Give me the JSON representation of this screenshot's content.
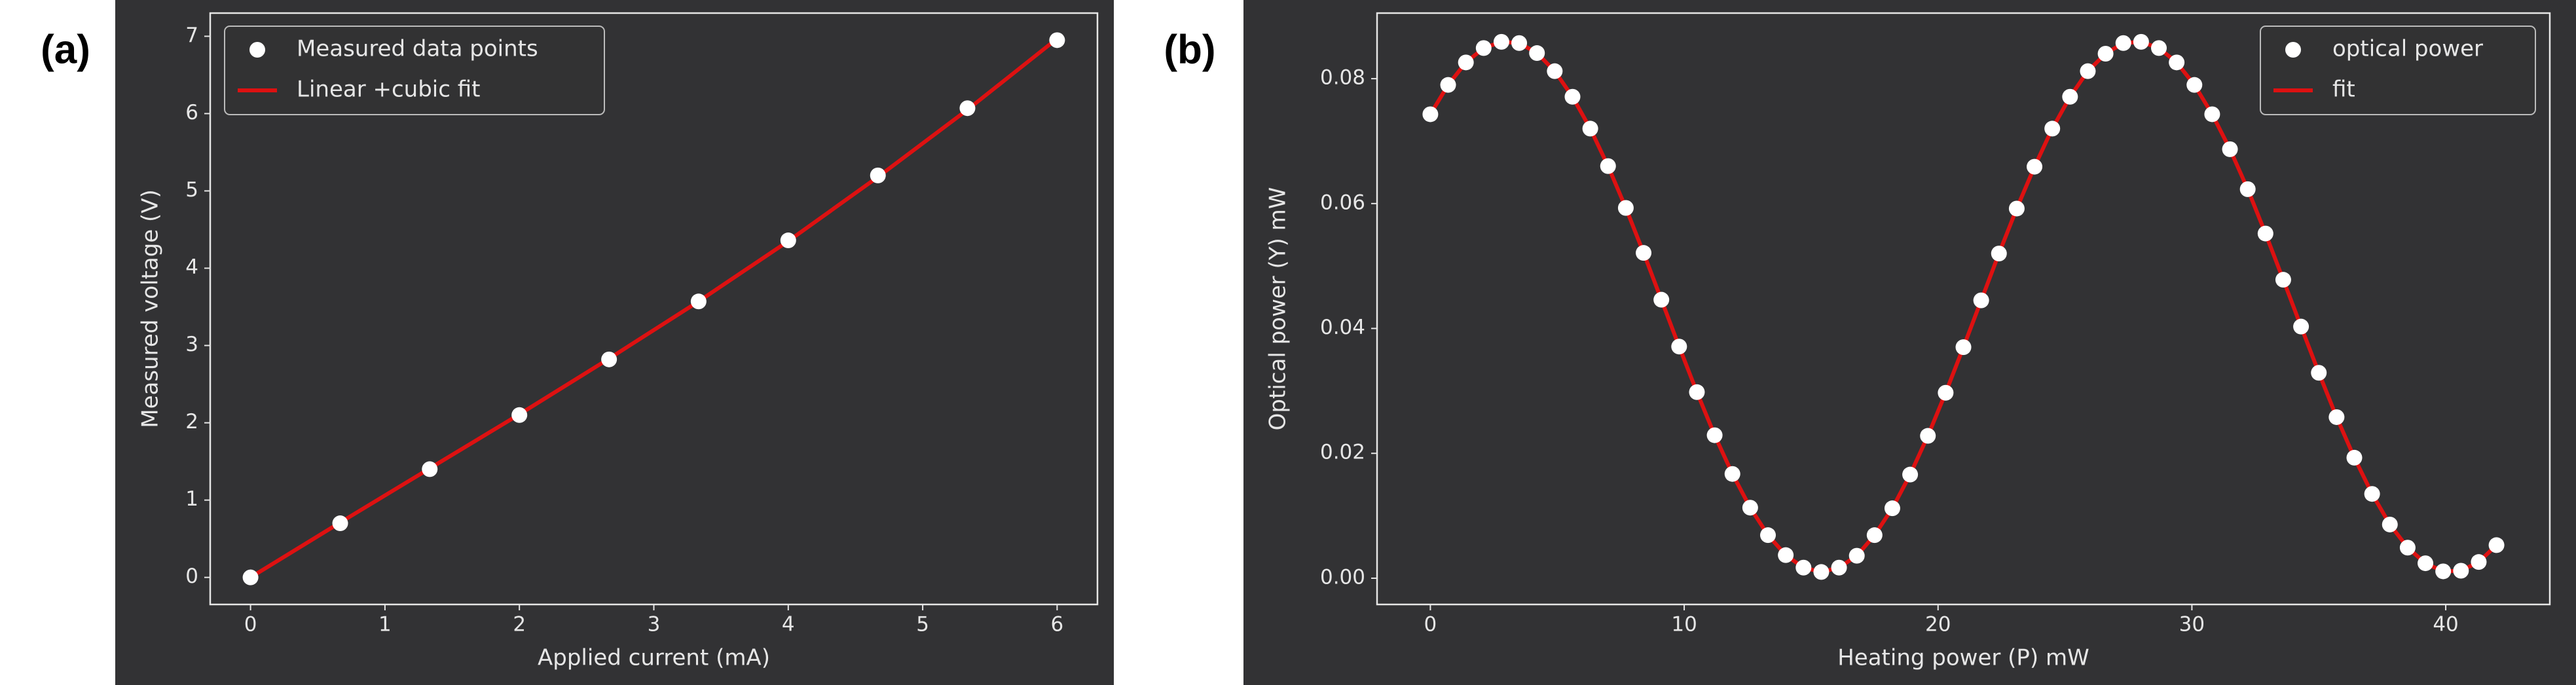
{
  "chart_data": [
    {
      "type": "scatter",
      "label": "(a)",
      "xlabel": "Applied current (mA)",
      "ylabel": "Measured voltage (V)",
      "x": [
        0,
        0.667,
        1.333,
        2,
        2.667,
        3.333,
        4,
        4.667,
        5.333,
        6
      ],
      "series": [
        {
          "name": "Measured data points",
          "type": "scatter",
          "color": "#ffffff",
          "values": [
            0,
            0.7,
            1.4,
            2.1,
            2.82,
            3.57,
            4.36,
            5.2,
            6.07,
            6.95
          ]
        },
        {
          "name": "Linear +cubic fit",
          "type": "line",
          "color": "#dd1111",
          "values": [
            0,
            0.71,
            1.41,
            2.11,
            2.83,
            3.57,
            4.35,
            5.18,
            6.05,
            6.97
          ]
        }
      ],
      "xlim": [
        -0.3,
        6.3
      ],
      "xticks": [
        0,
        1,
        2,
        3,
        4,
        5,
        6
      ],
      "ylim": [
        -0.35,
        7.3
      ],
      "yticks": [
        0,
        1,
        2,
        3,
        4,
        5,
        6,
        7
      ],
      "legend": "upper left"
    },
    {
      "type": "scatter",
      "label": "(b)",
      "xlabel": "Heating power (P) mW",
      "ylabel": "Optical power (Y) mW",
      "x": [
        0,
        0.7,
        1.4,
        2.1,
        2.8,
        3.5,
        4.2,
        4.9,
        5.6,
        6.3,
        7,
        7.7,
        8.4,
        9.1,
        9.8,
        10.5,
        11.2,
        11.9,
        12.6,
        13.3,
        14,
        14.7,
        15.4,
        16.1,
        16.8,
        17.5,
        18.2,
        18.9,
        19.6,
        20.3,
        21,
        21.7,
        22.4,
        23.1,
        23.8,
        24.5,
        25.2,
        25.9,
        26.6,
        27.3,
        28,
        28.7,
        29.4,
        30.1,
        30.8,
        31.5,
        32.2,
        32.9,
        33.6,
        34.3,
        35,
        35.7,
        36.4,
        37.1,
        37.8,
        38.5,
        39.2,
        39.9,
        40.6,
        41.3,
        42
      ],
      "series": [
        {
          "name": "optical power",
          "type": "scatter",
          "color": "#ffffff",
          "values": [
            0.0743,
            0.079,
            0.0826,
            0.0849,
            0.0859,
            0.0857,
            0.0841,
            0.0812,
            0.0771,
            0.072,
            0.066,
            0.0593,
            0.0521,
            0.0446,
            0.0371,
            0.0298,
            0.0229,
            0.0167,
            0.0113,
            0.0069,
            0.0037,
            0.0017,
            0.001,
            0.0017,
            0.0036,
            0.0069,
            0.0112,
            0.0166,
            0.0228,
            0.0297,
            0.037,
            0.0445,
            0.052,
            0.0592,
            0.0659,
            0.072,
            0.0771,
            0.0812,
            0.084,
            0.0857,
            0.0859,
            0.0849,
            0.0826,
            0.079,
            0.0743,
            0.0687,
            0.0623,
            0.0552,
            0.0478,
            0.0403,
            0.0329,
            0.0258,
            0.0193,
            0.0135,
            0.0086,
            0.0049,
            0.0024,
            0.0011,
            0.0012,
            0.0026,
            0.0053
          ]
        },
        {
          "name": "fit",
          "type": "line",
          "color": "#dd1111",
          "values": [
            0.0743,
            0.079,
            0.0826,
            0.0849,
            0.0859,
            0.0857,
            0.0841,
            0.0812,
            0.0771,
            0.072,
            0.066,
            0.0593,
            0.0521,
            0.0446,
            0.0371,
            0.0298,
            0.0229,
            0.0167,
            0.0113,
            0.0069,
            0.0037,
            0.0017,
            0.001,
            0.0017,
            0.0036,
            0.0069,
            0.0112,
            0.0166,
            0.0228,
            0.0297,
            0.037,
            0.0445,
            0.052,
            0.0592,
            0.0659,
            0.072,
            0.0771,
            0.0812,
            0.084,
            0.0857,
            0.0859,
            0.0849,
            0.0826,
            0.079,
            0.0743,
            0.0687,
            0.0623,
            0.0552,
            0.0478,
            0.0403,
            0.0329,
            0.0258,
            0.0193,
            0.0135,
            0.0086,
            0.0049,
            0.0024,
            0.0011,
            0.0012,
            0.0026,
            0.0053
          ]
        }
      ],
      "xlim": [
        -2.1,
        44.1
      ],
      "xticks": [
        0,
        10,
        20,
        30,
        40
      ],
      "ylim": [
        -0.0042,
        0.0905
      ],
      "yticks": [
        {
          "value": 0,
          "label": "0.00"
        },
        0.02,
        0.04,
        0.06,
        0.08
      ],
      "legend": "upper right"
    }
  ]
}
